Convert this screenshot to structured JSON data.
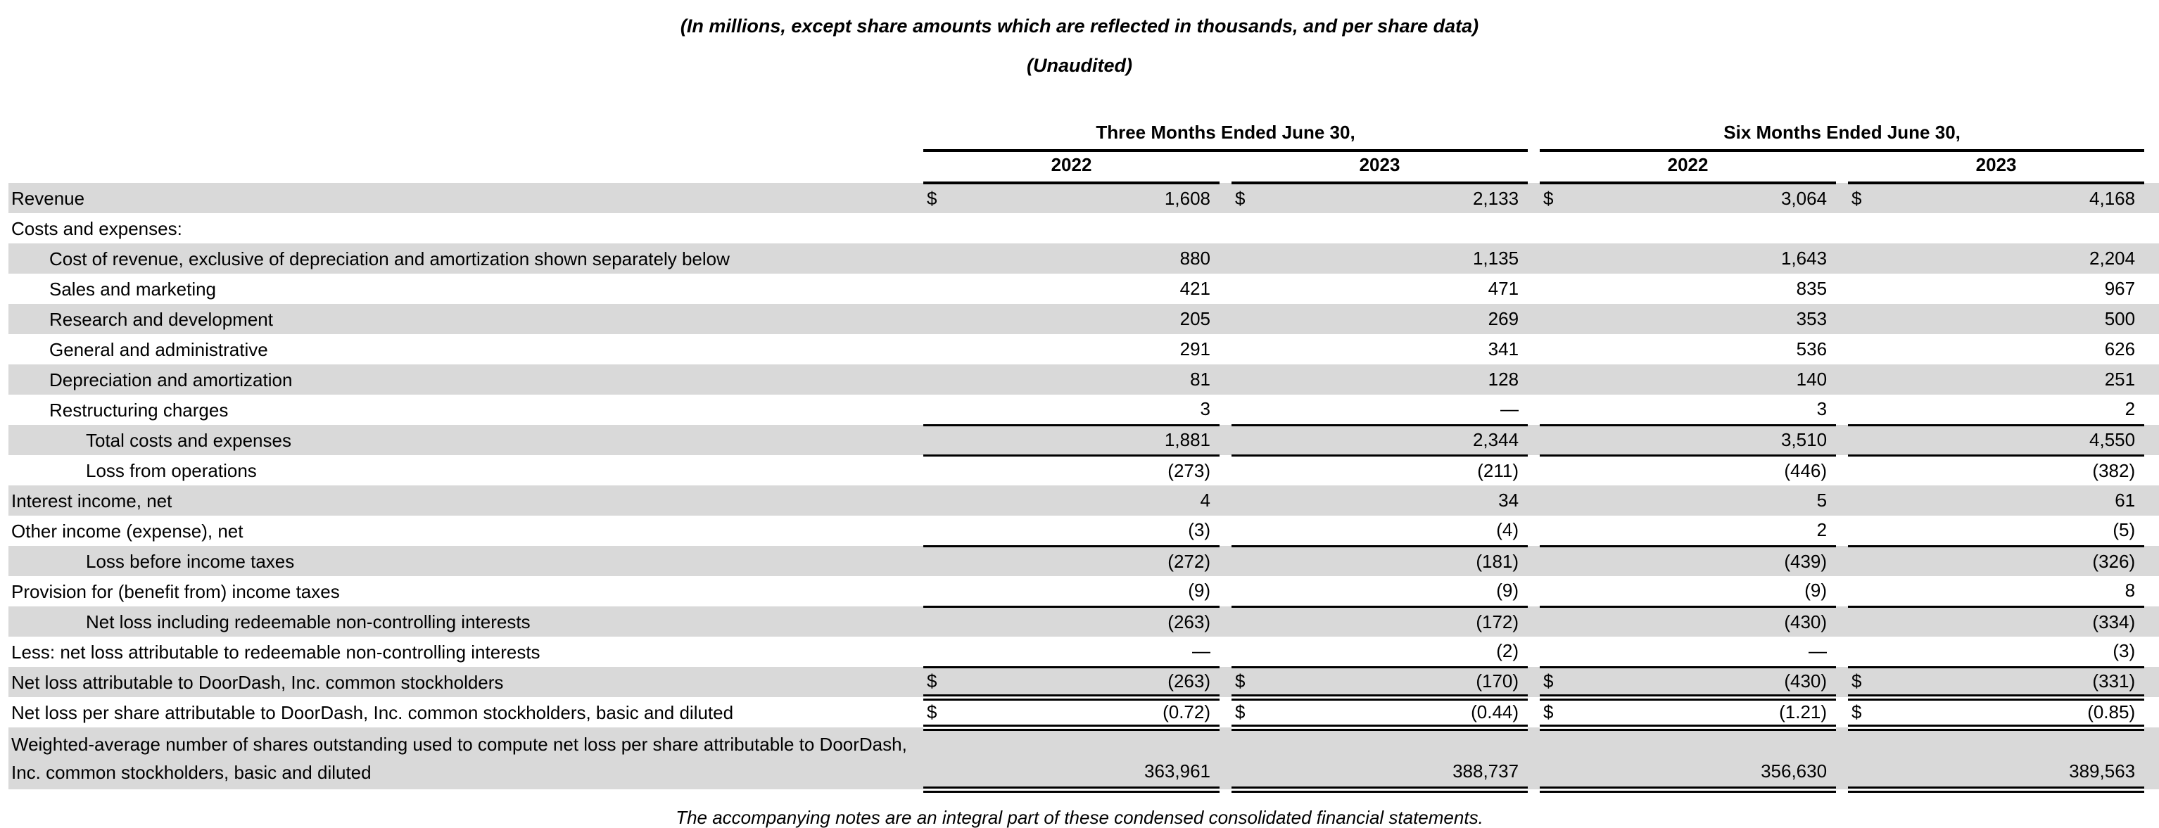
{
  "document": {
    "subtitle": "(In millions, except share amounts which are reflected in thousands, and per share data)",
    "unaudited": "(Unaudited)",
    "footer_note": "The accompanying notes are an integral part of these condensed consolidated financial statements."
  },
  "table": {
    "currency_symbol": "$",
    "shading_color": "#d9d9d9",
    "column_groups": [
      {
        "label": "Three Months Ended June 30,",
        "years": [
          "2022",
          "2023"
        ]
      },
      {
        "label": "Six Months Ended June 30,",
        "years": [
          "2022",
          "2023"
        ]
      }
    ],
    "rows": [
      {
        "label": "Revenue",
        "indent": 0,
        "shaded": true,
        "dollar_sign": true,
        "values": [
          "1,608",
          "2,133",
          "3,064",
          "4,168"
        ],
        "bottom_border": "none"
      },
      {
        "label": "Costs and expenses:",
        "indent": 0,
        "shaded": false,
        "dollar_sign": false,
        "values": [
          "",
          "",
          "",
          ""
        ],
        "bottom_border": "none"
      },
      {
        "label": "Cost of revenue, exclusive of depreciation and amortization shown separately below",
        "indent": 1,
        "shaded": true,
        "dollar_sign": false,
        "values": [
          "880",
          "1,135",
          "1,643",
          "2,204"
        ],
        "bottom_border": "none"
      },
      {
        "label": "Sales and marketing",
        "indent": 1,
        "shaded": false,
        "dollar_sign": false,
        "values": [
          "421",
          "471",
          "835",
          "967"
        ],
        "bottom_border": "none"
      },
      {
        "label": "Research and development",
        "indent": 1,
        "shaded": true,
        "dollar_sign": false,
        "values": [
          "205",
          "269",
          "353",
          "500"
        ],
        "bottom_border": "none"
      },
      {
        "label": "General and administrative",
        "indent": 1,
        "shaded": false,
        "dollar_sign": false,
        "values": [
          "291",
          "341",
          "536",
          "626"
        ],
        "bottom_border": "none"
      },
      {
        "label": "Depreciation and amortization",
        "indent": 1,
        "shaded": true,
        "dollar_sign": false,
        "values": [
          "81",
          "128",
          "140",
          "251"
        ],
        "bottom_border": "none"
      },
      {
        "label": "Restructuring charges",
        "indent": 1,
        "shaded": false,
        "dollar_sign": false,
        "values": [
          "3",
          "—",
          "3",
          "2"
        ],
        "bottom_border": "single"
      },
      {
        "label": "Total costs and expenses",
        "indent": 2,
        "shaded": true,
        "dollar_sign": false,
        "values": [
          "1,881",
          "2,344",
          "3,510",
          "4,550"
        ],
        "bottom_border": "single"
      },
      {
        "label": "Loss from operations",
        "indent": 2,
        "shaded": false,
        "dollar_sign": false,
        "values": [
          "(273)",
          "(211)",
          "(446)",
          "(382)"
        ],
        "bottom_border": "none"
      },
      {
        "label": "Interest income, net",
        "indent": 0,
        "shaded": true,
        "dollar_sign": false,
        "values": [
          "4",
          "34",
          "5",
          "61"
        ],
        "bottom_border": "none"
      },
      {
        "label": "Other income (expense), net",
        "indent": 0,
        "shaded": false,
        "dollar_sign": false,
        "values": [
          "(3)",
          "(4)",
          "2",
          "(5)"
        ],
        "bottom_border": "single"
      },
      {
        "label": "Loss before income taxes",
        "indent": 2,
        "shaded": true,
        "dollar_sign": false,
        "values": [
          "(272)",
          "(181)",
          "(439)",
          "(326)"
        ],
        "bottom_border": "none"
      },
      {
        "label": "Provision for (benefit from) income taxes",
        "indent": 0,
        "shaded": false,
        "dollar_sign": false,
        "values": [
          "(9)",
          "(9)",
          "(9)",
          "8"
        ],
        "bottom_border": "single"
      },
      {
        "label": "Net loss including redeemable non-controlling interests",
        "indent": 2,
        "shaded": true,
        "dollar_sign": false,
        "values": [
          "(263)",
          "(172)",
          "(430)",
          "(334)"
        ],
        "bottom_border": "none"
      },
      {
        "label": "Less: net loss attributable to redeemable non-controlling interests",
        "indent": 0,
        "shaded": false,
        "dollar_sign": false,
        "values": [
          "—",
          "(2)",
          "—",
          "(3)"
        ],
        "bottom_border": "single"
      },
      {
        "label": "Net loss attributable to DoorDash, Inc. common stockholders",
        "indent": 0,
        "shaded": true,
        "dollar_sign": true,
        "values": [
          "(263)",
          "(170)",
          "(430)",
          "(331)"
        ],
        "bottom_border": "double"
      },
      {
        "label": "Net loss per share attributable to DoorDash, Inc. common stockholders, basic and diluted",
        "indent": 0,
        "shaded": false,
        "dollar_sign": true,
        "values": [
          "(0.72)",
          "(0.44)",
          "(1.21)",
          "(0.85)"
        ],
        "bottom_border": "double"
      },
      {
        "label": "Weighted-average number of shares outstanding used to compute net loss per share attributable to DoorDash, Inc. common stockholders, basic and diluted",
        "indent": 0,
        "shaded": true,
        "dollar_sign": false,
        "values": [
          "363,961",
          "388,737",
          "356,630",
          "389,563"
        ],
        "bottom_border": "double",
        "tall": true
      }
    ]
  }
}
